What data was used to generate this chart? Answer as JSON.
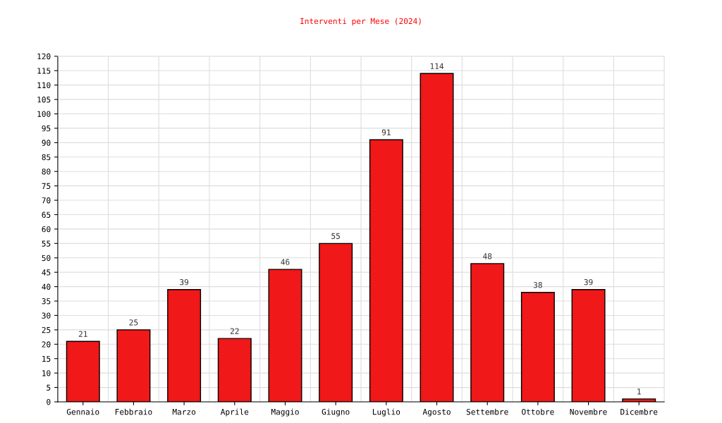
{
  "chart_data": {
    "type": "bar",
    "title": "Interventi per Mese (2024)",
    "categories": [
      "Gennaio",
      "Febbraio",
      "Marzo",
      "Aprile",
      "Maggio",
      "Giugno",
      "Luglio",
      "Agosto",
      "Settembre",
      "Ottobre",
      "Novembre",
      "Dicembre"
    ],
    "values": [
      21,
      25,
      39,
      22,
      46,
      55,
      91,
      114,
      48,
      38,
      39,
      1
    ],
    "color": "#f01818",
    "ylim": [
      0,
      120
    ],
    "yticks": [
      0,
      5,
      10,
      15,
      20,
      25,
      30,
      35,
      40,
      45,
      50,
      55,
      60,
      65,
      70,
      75,
      80,
      85,
      90,
      95,
      100,
      105,
      110,
      115,
      120
    ],
    "grid": true,
    "data_labels": true
  }
}
